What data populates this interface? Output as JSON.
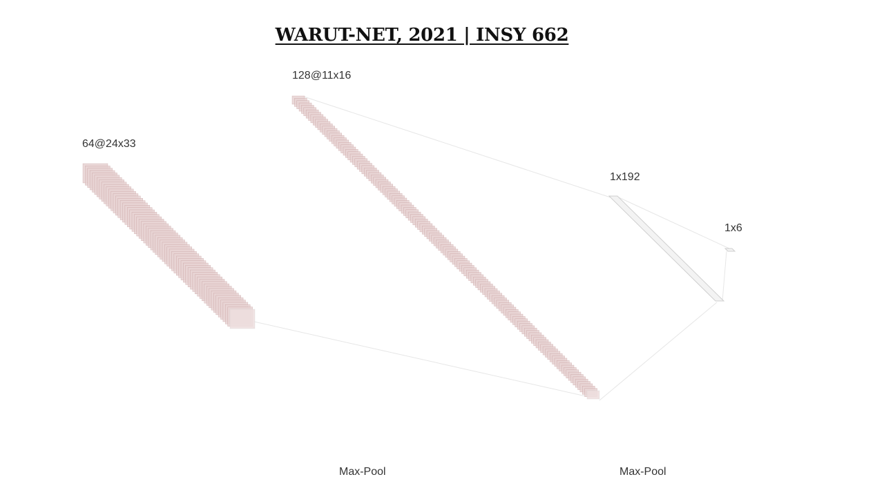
{
  "title": "WARUT-NET, 2021 | INSY 662",
  "layers": [
    {
      "label": "64@24x33",
      "maps": 64
    },
    {
      "label": "128@11x16",
      "maps": 128
    },
    {
      "label": "1x192"
    },
    {
      "label": "1x6"
    }
  ],
  "operations": [
    "Max-Pool",
    "Max-Pool"
  ],
  "colors": {
    "map_fill": "#e8d3d3",
    "map_stroke": "#b98a8a",
    "dense_stroke": "#cfcfcf",
    "connector": "#e6e6e6"
  }
}
